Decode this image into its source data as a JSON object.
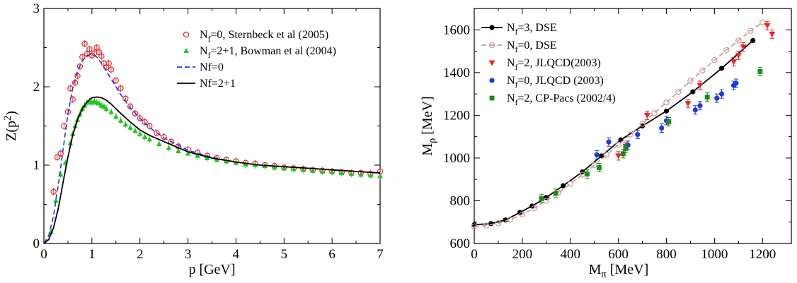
{
  "chart_data": [
    {
      "type": "scatter",
      "xlabel": "p [GeV]",
      "ylabel": "Z(p²)",
      "xlim": [
        0,
        7
      ],
      "ylim": [
        0,
        3
      ],
      "xticks": [
        0,
        1,
        2,
        3,
        4,
        5,
        6,
        7
      ],
      "yticks": [
        0,
        1,
        2,
        3
      ],
      "legend_position": "top-right",
      "series": [
        {
          "name": "Nf=0,     Sternbeck et al (2005)",
          "name_parts": {
            "base": "N",
            "sub": "f",
            "rest": "=0,     Sternbeck et al (2005)"
          },
          "marker": "open-circle",
          "color": "#e8262a",
          "x": [
            0.2,
            0.28,
            0.35,
            0.42,
            0.5,
            0.55,
            0.6,
            0.65,
            0.7,
            0.75,
            0.8,
            0.85,
            0.9,
            0.95,
            1.0,
            1.05,
            1.1,
            1.15,
            1.2,
            1.25,
            1.3,
            1.35,
            1.4,
            1.5,
            1.6,
            1.7,
            1.8,
            1.9,
            2.0,
            2.1,
            2.2,
            2.35,
            2.5,
            2.65,
            2.8,
            3.0,
            3.2,
            3.4,
            3.6,
            3.8,
            4.0,
            4.2,
            4.4,
            4.6,
            4.8,
            5.0,
            5.2,
            5.4,
            5.6,
            5.8,
            6.0,
            6.2,
            6.4,
            6.6,
            6.8,
            7.0
          ],
          "y": [
            0.66,
            1.1,
            1.15,
            1.5,
            1.68,
            1.98,
            1.84,
            2.05,
            2.14,
            2.26,
            2.38,
            2.55,
            2.42,
            2.48,
            2.4,
            2.43,
            2.5,
            2.44,
            2.39,
            2.3,
            2.25,
            2.3,
            2.22,
            2.08,
            1.98,
            1.85,
            1.75,
            1.66,
            1.6,
            1.55,
            1.5,
            1.41,
            1.36,
            1.3,
            1.24,
            1.2,
            1.16,
            1.12,
            1.09,
            1.07,
            1.05,
            1.03,
            1.02,
            1.0,
            0.99,
            0.97,
            0.96,
            0.95,
            0.94,
            0.93,
            0.92,
            0.91,
            0.9,
            0.9,
            0.89,
            0.92
          ]
        },
        {
          "name": "Nf=2+1, Bowman et al (2004)",
          "name_parts": {
            "base": "N",
            "sub": "f",
            "rest": "=2+1, Bowman et al (2004)"
          },
          "marker": "filled-triangle",
          "color": "#22c322",
          "x": [
            0.15,
            0.25,
            0.35,
            0.45,
            0.55,
            0.6,
            0.65,
            0.7,
            0.75,
            0.8,
            0.85,
            0.9,
            0.95,
            1.0,
            1.05,
            1.1,
            1.15,
            1.2,
            1.25,
            1.3,
            1.4,
            1.5,
            1.6,
            1.7,
            1.8,
            1.9,
            2.0,
            2.1,
            2.2,
            2.4,
            2.6,
            2.8,
            3.0,
            3.2,
            3.4,
            3.6,
            3.8,
            4.0,
            4.2,
            4.4,
            4.6,
            4.8,
            5.0,
            5.2,
            5.4,
            5.6,
            5.8,
            6.0,
            6.2,
            6.4,
            6.6,
            6.8,
            7.0
          ],
          "y": [
            0.15,
            0.55,
            0.88,
            1.03,
            1.28,
            1.4,
            1.5,
            1.58,
            1.65,
            1.72,
            1.76,
            1.8,
            1.82,
            1.8,
            1.82,
            1.8,
            1.79,
            1.76,
            1.75,
            1.72,
            1.68,
            1.62,
            1.57,
            1.52,
            1.48,
            1.44,
            1.4,
            1.36,
            1.33,
            1.27,
            1.22,
            1.18,
            1.15,
            1.12,
            1.09,
            1.07,
            1.05,
            1.03,
            1.01,
            1.0,
            0.99,
            0.97,
            0.96,
            0.95,
            0.94,
            0.93,
            0.92,
            0.91,
            0.9,
            0.89,
            0.88,
            0.87,
            0.86
          ]
        },
        {
          "name": "Nf=0",
          "line": "dashed",
          "color": "#1f3bd6",
          "x": [
            0.0,
            0.1,
            0.2,
            0.3,
            0.4,
            0.5,
            0.6,
            0.7,
            0.8,
            0.9,
            1.0,
            1.1,
            1.2,
            1.3,
            1.4,
            1.5,
            1.6,
            1.8,
            2.0,
            2.2,
            2.5,
            3.0,
            3.5,
            4.0,
            4.5,
            5.0,
            5.5,
            6.0,
            6.5,
            7.0
          ],
          "y": [
            0.0,
            0.1,
            0.35,
            0.75,
            1.2,
            1.65,
            1.98,
            2.2,
            2.33,
            2.4,
            2.42,
            2.38,
            2.3,
            2.2,
            2.1,
            2.0,
            1.9,
            1.73,
            1.6,
            1.48,
            1.35,
            1.19,
            1.1,
            1.04,
            1.0,
            0.98,
            0.96,
            0.94,
            0.92,
            0.9
          ]
        },
        {
          "name": "Nf=2+1",
          "line": "solid",
          "color": "#000000",
          "x": [
            0.0,
            0.1,
            0.2,
            0.3,
            0.4,
            0.5,
            0.6,
            0.7,
            0.8,
            0.9,
            1.0,
            1.1,
            1.2,
            1.3,
            1.4,
            1.5,
            1.6,
            1.8,
            2.0,
            2.2,
            2.5,
            3.0,
            3.5,
            4.0,
            4.5,
            5.0,
            5.5,
            6.0,
            6.5,
            7.0
          ],
          "y": [
            0.0,
            0.05,
            0.2,
            0.45,
            0.78,
            1.1,
            1.38,
            1.58,
            1.72,
            1.81,
            1.86,
            1.87,
            1.86,
            1.83,
            1.78,
            1.72,
            1.66,
            1.55,
            1.45,
            1.38,
            1.3,
            1.17,
            1.09,
            1.04,
            1.0,
            0.98,
            0.96,
            0.94,
            0.92,
            0.9
          ]
        }
      ]
    },
    {
      "type": "scatter",
      "xlabel": "Mπ [MeV]",
      "xlabel_parts": {
        "base": "M",
        "sub": "π",
        "rest": " [MeV]"
      },
      "ylabel": "Mρ [MeV]",
      "ylabel_parts": {
        "base": "M",
        "sub": "ρ",
        "rest": " [MeV]"
      },
      "xlim": [
        0,
        1320
      ],
      "ylim": [
        600,
        1700
      ],
      "xticks": [
        0,
        200,
        400,
        600,
        800,
        1000,
        1200
      ],
      "yticks": [
        600,
        800,
        1000,
        1200,
        1400,
        1600
      ],
      "legend_position": "top-left",
      "series": [
        {
          "name": "Nf=3, DSE",
          "name_parts": {
            "base": "N",
            "sub": "f",
            "rest": "=3, DSE"
          },
          "marker": "filled-circle",
          "line": "solid",
          "color": "#000000",
          "x": [
            0,
            70,
            130,
            190,
            240,
            300,
            370,
            450,
            530,
            610,
            700,
            800,
            910,
            1030,
            1160
          ],
          "y": [
            688,
            693,
            710,
            745,
            775,
            815,
            870,
            935,
            1010,
            1085,
            1150,
            1220,
            1310,
            1420,
            1550
          ]
        },
        {
          "name": "Nf=0, DSE",
          "name_parts": {
            "base": "N",
            "sub": "f",
            "rest": "=0, DSE"
          },
          "marker": "open-circle",
          "line": "dashed",
          "color": "#c89a96",
          "x": [
            0,
            50,
            100,
            150,
            200,
            250,
            300,
            350,
            400,
            450,
            500,
            550,
            600,
            650,
            700,
            750,
            800,
            850,
            900,
            950,
            1000,
            1050,
            1100,
            1150,
            1200
          ],
          "y": [
            680,
            684,
            695,
            712,
            736,
            765,
            800,
            838,
            879,
            922,
            967,
            1014,
            1062,
            1110,
            1160,
            1210,
            1260,
            1310,
            1360,
            1410,
            1458,
            1505,
            1550,
            1595,
            1635
          ]
        },
        {
          "name": "Nf=2, JLQCD(2003)",
          "name_parts": {
            "base": "N",
            "sub": "f",
            "rest": "=2, JLQCD(2003)"
          },
          "marker": "filled-down-triangle",
          "color": "#e8262a",
          "x": [
            600,
            630,
            720,
            890,
            940,
            1080,
            1100,
            1120,
            1220,
            1240
          ],
          "y": [
            1010,
            1055,
            1200,
            1255,
            1340,
            1450,
            1480,
            1520,
            1620,
            1580
          ]
        },
        {
          "name": "Nf=0, JLQCD (2003)",
          "name_parts": {
            "base": "N",
            "sub": "f",
            "rest": "=0, JLQCD (2003)"
          },
          "marker": "filled-circle",
          "color": "#1f3bd6",
          "x": [
            510,
            560,
            640,
            680,
            780,
            800,
            920,
            940,
            1010,
            1030,
            1080,
            1090
          ],
          "y": [
            1015,
            1075,
            1060,
            1110,
            1140,
            1175,
            1225,
            1245,
            1280,
            1300,
            1340,
            1350
          ]
        },
        {
          "name": "Nf=2, CP-Pacs (2002/4)",
          "name_parts": {
            "base": "N",
            "sub": "f",
            "rest": "=2, CP-Pacs (2002/4)"
          },
          "marker": "filled-square",
          "color": "#1a8a1a",
          "x": [
            280,
            340,
            470,
            520,
            620,
            630,
            810,
            970,
            1190
          ],
          "y": [
            810,
            835,
            925,
            955,
            1020,
            1045,
            1170,
            1285,
            1405
          ]
        }
      ]
    }
  ]
}
